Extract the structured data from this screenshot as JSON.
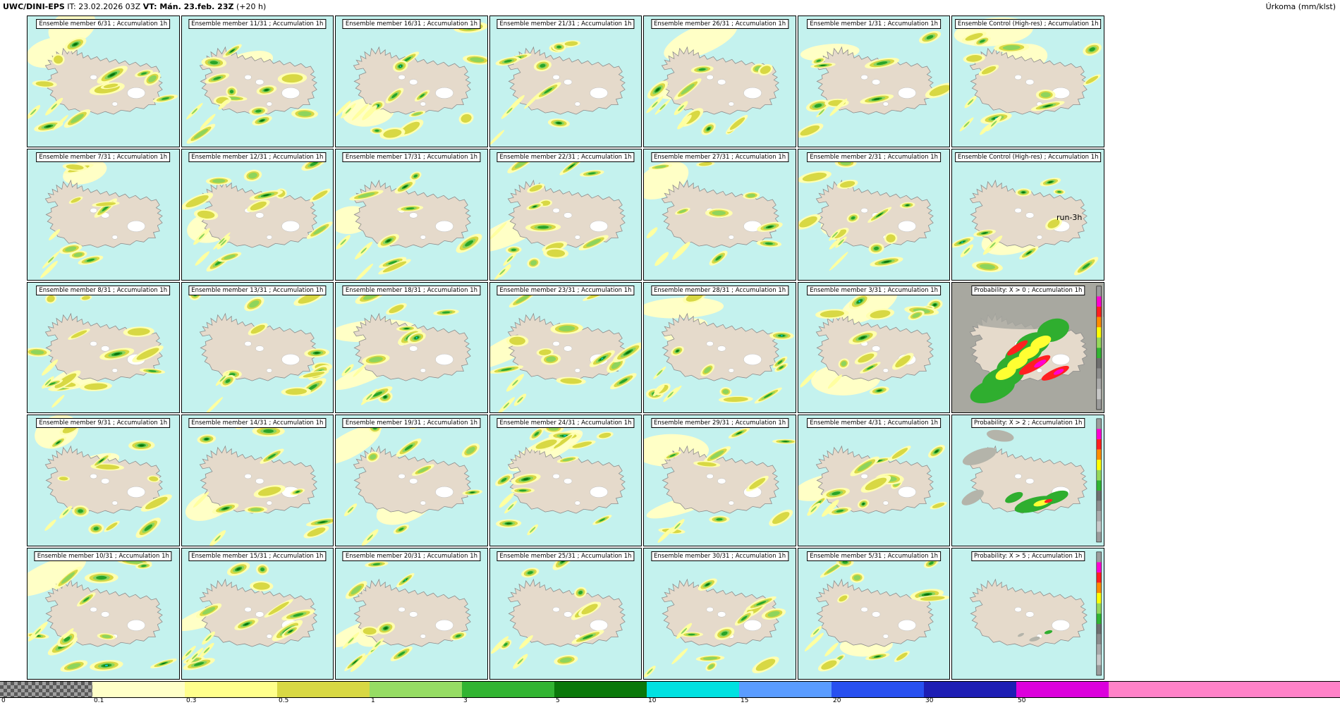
{
  "header": {
    "model": "UWC/DINI-EPS",
    "it": "IT: 23.02.2026 03Z",
    "vt": "VT: Mán. 23.feb. 23Z",
    "offset": "(+20 h)",
    "units": "Úrkoma (mm/klst)"
  },
  "run_annotation": "run-3h",
  "map_colors": {
    "ocean": "#c4f2ee",
    "land": "#e5dacb",
    "glacier": "#ffffff",
    "probability_gray": "#a8a8a0"
  },
  "panels": [
    {
      "title": "Ensemble member 6/31 ; Accumulation 1h",
      "kind": "member"
    },
    {
      "title": "Ensemble member 11/31 ; Accumulation 1h",
      "kind": "member"
    },
    {
      "title": "Ensemble member 16/31 ; Accumulation 1h",
      "kind": "member"
    },
    {
      "title": "Ensemble member 21/31 ; Accumulation 1h",
      "kind": "member"
    },
    {
      "title": "Ensemble member 26/31 ; Accumulation 1h",
      "kind": "member"
    },
    {
      "title": "Ensemble member 1/31 ; Accumulation 1h",
      "kind": "member"
    },
    {
      "title": "Ensemble Control (High-res) ; Accumulation 1h",
      "kind": "control"
    },
    {
      "title": "Ensemble member 7/31 ; Accumulation 1h",
      "kind": "member"
    },
    {
      "title": "Ensemble member 12/31 ; Accumulation 1h",
      "kind": "member"
    },
    {
      "title": "Ensemble member 17/31 ; Accumulation 1h",
      "kind": "member"
    },
    {
      "title": "Ensemble member 22/31 ; Accumulation 1h",
      "kind": "member"
    },
    {
      "title": "Ensemble member 27/31 ; Accumulation 1h",
      "kind": "member"
    },
    {
      "title": "Ensemble member 2/31 ; Accumulation 1h",
      "kind": "member"
    },
    {
      "title": "Ensemble Control (High-res) ; Accumulation 1h",
      "kind": "control"
    },
    {
      "title": "Ensemble member 8/31 ; Accumulation 1h",
      "kind": "member"
    },
    {
      "title": "Ensemble member 13/31 ; Accumulation 1h",
      "kind": "member"
    },
    {
      "title": "Ensemble member 18/31 ; Accumulation 1h",
      "kind": "member"
    },
    {
      "title": "Ensemble member 23/31 ; Accumulation 1h",
      "kind": "member"
    },
    {
      "title": "Ensemble member 28/31 ; Accumulation 1h",
      "kind": "member"
    },
    {
      "title": "Ensemble member 3/31 ; Accumulation 1h",
      "kind": "member"
    },
    {
      "title": "Probability: X > 0 ; Accumulation 1h",
      "kind": "prob0"
    },
    {
      "title": "Ensemble member 9/31 ; Accumulation 1h",
      "kind": "member"
    },
    {
      "title": "Ensemble member 14/31 ; Accumulation 1h",
      "kind": "member"
    },
    {
      "title": "Ensemble member 19/31 ; Accumulation 1h",
      "kind": "member"
    },
    {
      "title": "Ensemble member 24/31 ; Accumulation 1h",
      "kind": "member"
    },
    {
      "title": "Ensemble member 29/31 ; Accumulation 1h",
      "kind": "member"
    },
    {
      "title": "Ensemble member 4/31 ; Accumulation 1h",
      "kind": "member"
    },
    {
      "title": "Probability: X > 2 ; Accumulation 1h",
      "kind": "prob2"
    },
    {
      "title": "Ensemble member 10/31 ; Accumulation 1h",
      "kind": "member"
    },
    {
      "title": "Ensemble member 15/31 ; Accumulation 1h",
      "kind": "member"
    },
    {
      "title": "Ensemble member 20/31 ; Accumulation 1h",
      "kind": "member"
    },
    {
      "title": "Ensemble member 25/31 ; Accumulation 1h",
      "kind": "member"
    },
    {
      "title": "Ensemble member 30/31 ; Accumulation 1h",
      "kind": "member"
    },
    {
      "title": "Ensemble member 5/31 ; Accumulation 1h",
      "kind": "member"
    },
    {
      "title": "Probability: X > 5 ; Accumulation 1h",
      "kind": "prob5"
    }
  ],
  "legend": {
    "ticks": [
      "0",
      "0.1",
      "0.3",
      "0.5",
      "1",
      "3",
      "5",
      "10",
      "15",
      "20",
      "30",
      "50"
    ],
    "segment_colors": [
      "checker",
      "#ffffc8",
      "#ffff8c",
      "#d8d844",
      "#96dc64",
      "#32b432",
      "#0a780a",
      "#00e1e1",
      "#5a9cff",
      "#2850f0",
      "#1e1eb4",
      "#dc00dc",
      "#ff82c8"
    ]
  }
}
